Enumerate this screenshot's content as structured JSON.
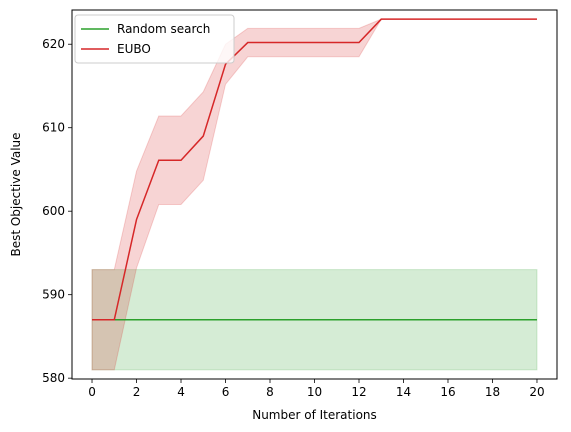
{
  "chart_data": {
    "type": "line",
    "xlabel": "Number of Iterations",
    "ylabel": "Best Objective Value",
    "xlim": [
      -0.9,
      20.9
    ],
    "ylim": [
      579.9,
      624.1
    ],
    "xticks": [
      0,
      2,
      4,
      6,
      8,
      10,
      12,
      14,
      16,
      18,
      20
    ],
    "yticks": [
      580,
      590,
      600,
      610,
      620
    ],
    "grid": false,
    "legend_position": "top-left",
    "x": [
      0,
      1,
      2,
      3,
      4,
      5,
      6,
      7,
      8,
      9,
      10,
      11,
      12,
      13,
      14,
      15,
      16,
      17,
      18,
      19,
      20
    ],
    "series": [
      {
        "name": "Random search",
        "color": "#2ca02c",
        "values": [
          587,
          587,
          587,
          587,
          587,
          587,
          587,
          587,
          587,
          587,
          587,
          587,
          587,
          587,
          587,
          587,
          587,
          587,
          587,
          587,
          587
        ],
        "lower": [
          581,
          581,
          581,
          581,
          581,
          581,
          581,
          581,
          581,
          581,
          581,
          581,
          581,
          581,
          581,
          581,
          581,
          581,
          581,
          581,
          581
        ],
        "upper": [
          593,
          593,
          593,
          593,
          593,
          593,
          593,
          593,
          593,
          593,
          593,
          593,
          593,
          593,
          593,
          593,
          593,
          593,
          593,
          593,
          593
        ]
      },
      {
        "name": "EUBO",
        "color": "#d62728",
        "values": [
          587,
          587,
          599,
          606.1,
          606.1,
          609,
          617.6,
          620.2,
          620.2,
          620.2,
          620.2,
          620.2,
          620.2,
          623,
          623,
          623,
          623,
          623,
          623,
          623,
          623
        ],
        "lower": [
          581,
          581,
          593.2,
          600.8,
          600.8,
          603.7,
          615.2,
          618.5,
          618.5,
          618.5,
          618.5,
          618.5,
          618.5,
          623,
          623,
          623,
          623,
          623,
          623,
          623,
          623
        ],
        "upper": [
          593,
          593,
          604.8,
          611.4,
          611.4,
          614.3,
          620,
          621.9,
          621.9,
          621.9,
          621.9,
          621.9,
          621.9,
          623,
          623,
          623,
          623,
          623,
          623,
          623,
          623
        ]
      }
    ]
  }
}
